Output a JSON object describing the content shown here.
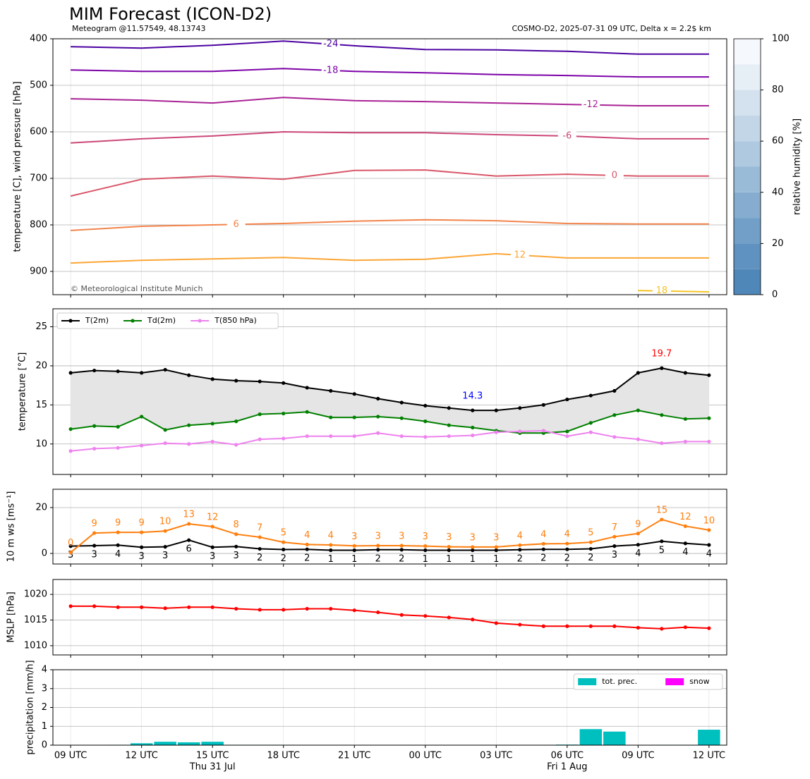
{
  "chart_data": [
    {
      "type": "contour",
      "title": "MIM Forecast (ICON-D2)",
      "subtitle": "Meteogram @11.57549, 48.13743",
      "info": "COSMO-D2, 2025-07-31 09 UTC, Delta x = 2.2$ km",
      "credit": "© Meteorological Institute Munich",
      "ylabel": "temperature [C], wind pressure [hPa]",
      "ylim": [
        950,
        400
      ],
      "yticks": [
        400,
        500,
        600,
        700,
        800,
        900
      ],
      "grid": true,
      "x": [
        0,
        3,
        6,
        9,
        12,
        15,
        18,
        21,
        24,
        27
      ],
      "series": [
        {
          "name": "-24",
          "color": "#4c02a1",
          "values": [
            417,
            420,
            414,
            405,
            415,
            423,
            424,
            427,
            433,
            433
          ]
        },
        {
          "name": "-18",
          "color": "#7e03a8",
          "values": [
            467,
            470,
            470,
            464,
            470,
            473,
            477,
            479,
            482,
            482
          ]
        },
        {
          "name": "-12",
          "color": "#a92395",
          "values": [
            529,
            532,
            538,
            526,
            533,
            535,
            538,
            541,
            544,
            544
          ]
        },
        {
          "name": "-6",
          "color": "#cc4778",
          "values": [
            624,
            615,
            609,
            600,
            602,
            602,
            606,
            609,
            615,
            615
          ]
        },
        {
          "name": "0",
          "color": "#d9576b",
          "values": [
            738,
            702,
            695,
            702,
            683,
            682,
            695,
            691,
            695,
            695
          ]
        },
        {
          "name": "6",
          "color": "#f2844b",
          "values": [
            812,
            803,
            800,
            797,
            792,
            789,
            791,
            797,
            798,
            798
          ]
        },
        {
          "name": "12",
          "color": "#fca636",
          "values": [
            882,
            876,
            873,
            870,
            876,
            874,
            862,
            871,
            871,
            871
          ]
        },
        {
          "name": "18",
          "color": "#f5c423",
          "values": [
            null,
            null,
            null,
            null,
            null,
            null,
            null,
            null,
            941,
            944
          ]
        }
      ],
      "colorbar": {
        "label": "relative humidity [%]",
        "lim": [
          0,
          100
        ],
        "ticks": [
          0,
          20,
          40,
          60,
          80,
          100
        ],
        "colors": [
          "#4f87b9",
          "#5f92c0",
          "#729fc8",
          "#86add0",
          "#9abbd8",
          "#aec9e0",
          "#c2d6e8",
          "#d4e2ef",
          "#e6eef6",
          "#f5f8fc"
        ]
      }
    },
    {
      "type": "line",
      "ylabel": "temperature [°C]",
      "ylim": [
        6.1,
        27.3
      ],
      "yticks": [
        10,
        15,
        20,
        25
      ],
      "grid": true,
      "legend": "upper left",
      "fill_between": {
        "series": [
          0,
          1
        ],
        "color": "#e5e5e5"
      },
      "series": [
        {
          "name": "T(2m)",
          "color": "#000000",
          "values": [
            19.1,
            19.4,
            19.3,
            19.1,
            19.5,
            18.8,
            18.3,
            18.1,
            18.0,
            17.8,
            17.2,
            16.8,
            16.4,
            15.8,
            15.3,
            14.9,
            14.6,
            14.3,
            14.3,
            14.6,
            15.0,
            15.7,
            16.2,
            16.8,
            19.1,
            19.7,
            19.1,
            18.8
          ]
        },
        {
          "name": "Td(2m)",
          "color": "#008000",
          "values": [
            11.9,
            12.3,
            12.2,
            13.5,
            11.8,
            12.4,
            12.6,
            12.9,
            13.8,
            13.9,
            14.1,
            13.4,
            13.4,
            13.5,
            13.3,
            12.9,
            12.4,
            12.1,
            11.7,
            11.4,
            11.4,
            11.6,
            12.7,
            13.7,
            14.3,
            13.7,
            13.2,
            13.3
          ]
        },
        {
          "name": "T(850 hPa)",
          "color": "#ee82ee",
          "values": [
            9.1,
            9.4,
            9.5,
            9.8,
            10.1,
            10.0,
            10.3,
            9.9,
            10.6,
            10.7,
            11.0,
            11.0,
            11.0,
            11.4,
            11.0,
            10.9,
            11.0,
            11.1,
            11.5,
            11.6,
            11.7,
            11.0,
            11.5,
            10.9,
            10.6,
            10.1,
            10.3,
            10.3
          ]
        }
      ],
      "annotations": [
        {
          "text": "19.7",
          "color": "#ff0000"
        },
        {
          "text": "14.3",
          "color": "#0000ff"
        }
      ]
    },
    {
      "type": "line",
      "ylabel": "10 m ws [ms⁻¹]",
      "ylim": [
        -4.6,
        28
      ],
      "yticks": [
        0,
        20
      ],
      "grid": true,
      "series": [
        {
          "color": "#000000",
          "label_side": "below",
          "values": [
            3.2,
            3.4,
            3.6,
            2.7,
            2.9,
            5.8,
            2.7,
            3.0,
            2.0,
            1.7,
            1.8,
            1.4,
            1.4,
            1.6,
            1.6,
            1.4,
            1.4,
            1.4,
            1.4,
            1.6,
            1.8,
            1.8,
            2.0,
            3.2,
            3.8,
            5.3,
            4.4,
            3.7
          ],
          "value_labels": [
            "3",
            "3",
            "4",
            "3",
            "3",
            "6",
            "3",
            "3",
            "2",
            "2",
            "2",
            "1",
            "1",
            "2",
            "2",
            "1",
            "1",
            "1",
            "1",
            "2",
            "2",
            "2",
            "2",
            "3",
            "4",
            "5",
            "4",
            "4"
          ]
        },
        {
          "color": "#ff7f0e",
          "label_side": "above",
          "values": [
            0.4,
            8.9,
            9.2,
            9.2,
            9.8,
            12.9,
            11.7,
            8.4,
            7.1,
            4.9,
            3.9,
            3.7,
            3.3,
            3.4,
            3.4,
            3.2,
            2.9,
            2.8,
            2.8,
            3.6,
            4.2,
            4.3,
            4.9,
            7.3,
            8.7,
            14.8,
            11.9,
            10.2
          ],
          "value_labels": [
            "0",
            "9",
            "9",
            "9",
            "10",
            "13",
            "12",
            "8",
            "7",
            "5",
            "4",
            "4",
            "3",
            "3",
            "3",
            "3",
            "3",
            "3",
            "3",
            "4",
            "4",
            "4",
            "5",
            "7",
            "9",
            "15",
            "12",
            "10"
          ]
        }
      ]
    },
    {
      "type": "line",
      "ylabel": "MSLP [hPa]",
      "ylim": [
        1008.2,
        1022.9
      ],
      "yticks": [
        1010,
        1015,
        1020
      ],
      "grid": true,
      "series": [
        {
          "color": "#ff0000",
          "values": [
            1017.7,
            1017.7,
            1017.5,
            1017.5,
            1017.3,
            1017.5,
            1017.5,
            1017.2,
            1017.0,
            1017.0,
            1017.2,
            1017.2,
            1016.9,
            1016.5,
            1016.0,
            1015.8,
            1015.5,
            1015.1,
            1014.4,
            1014.1,
            1013.8,
            1013.8,
            1013.8,
            1013.8,
            1013.5,
            1013.3,
            1013.6,
            1013.4
          ]
        }
      ]
    },
    {
      "type": "bar",
      "ylabel": "precipitation [mm/h]",
      "ylim": [
        0,
        4
      ],
      "yticks": [
        0,
        1,
        2,
        3,
        4
      ],
      "grid": true,
      "legend": "upper right",
      "xlim": [
        -0.75,
        27.75
      ],
      "categories": [
        "09 UTC",
        null,
        null,
        "12 UTC",
        null,
        null,
        "15 UTC",
        null,
        null,
        "18 UTC",
        null,
        null,
        "21 UTC",
        null,
        null,
        "00 UTC",
        null,
        null,
        "03 UTC",
        null,
        null,
        "06 UTC",
        null,
        null,
        "09 UTC",
        null,
        null,
        "12 UTC"
      ],
      "date_labels": [
        null,
        null,
        null,
        null,
        null,
        null,
        "Thu 31 Jul",
        null,
        null,
        null,
        null,
        null,
        null,
        null,
        null,
        null,
        null,
        null,
        null,
        null,
        null,
        "Fri 1 Aug",
        null,
        null,
        null,
        null,
        null,
        null
      ],
      "series": [
        {
          "name": "tot. prec.",
          "color": "#00bfbf",
          "values": [
            0,
            0,
            0.02,
            0.1,
            0.18,
            0.15,
            0.18,
            0.02,
            0.02,
            0.02,
            0,
            0,
            0,
            0,
            0,
            0,
            0,
            0,
            0,
            0,
            0,
            0.03,
            0.85,
            0.72,
            0,
            0.02,
            0.02,
            0.82
          ]
        },
        {
          "name": "snow",
          "color": "#ff00ff",
          "values": [
            0,
            0,
            0,
            0,
            0,
            0,
            0,
            0,
            0,
            0,
            0,
            0,
            0,
            0,
            0,
            0,
            0,
            0,
            0,
            0,
            0,
            0,
            0,
            0,
            0,
            0,
            0,
            0
          ]
        }
      ]
    }
  ]
}
